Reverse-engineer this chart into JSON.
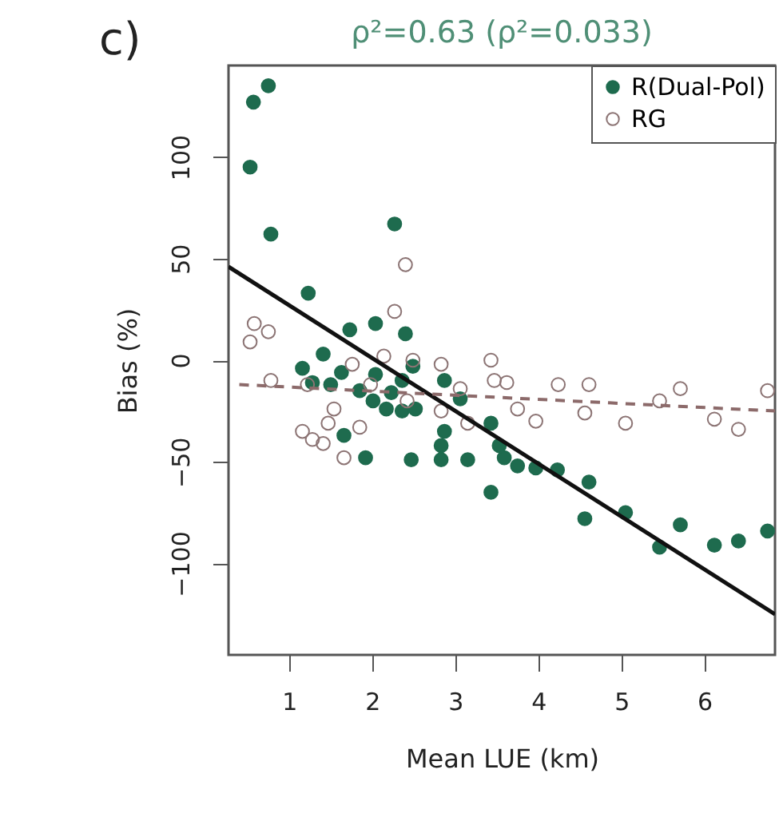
{
  "chart_data": {
    "type": "scatter",
    "title": "ρ²=0.63  (ρ²=0.033)",
    "xlabel": "Mean LUE (km)",
    "ylabel": "Bias (%)",
    "annotations": [
      "c)"
    ],
    "xlim": [
      0.27,
      6.85
    ],
    "ylim": [
      -145,
      145
    ],
    "xticks": [
      1,
      2,
      3,
      4,
      5,
      6
    ],
    "yticks": [
      -100,
      -50,
      0,
      50,
      100
    ],
    "grid": false,
    "legend": "top right",
    "series": [
      {
        "name": "R(Dual-Pol)",
        "color": "#1e6b4e",
        "marker": "circle",
        "x": [
          0.57,
          0.75,
          0.53,
          0.78,
          1.23,
          1.73,
          2.04,
          2.4,
          2.27,
          1.41,
          1.16,
          1.28,
          1.5,
          1.63,
          1.85,
          2.04,
          2.01,
          2.23,
          2.36,
          2.49,
          2.52,
          1.66,
          1.92,
          2.47,
          2.83,
          2.83,
          2.87,
          2.36,
          2.17,
          3.06,
          2.87,
          3.15,
          3.43,
          3.43,
          3.53,
          3.59,
          3.75,
          3.97,
          4.23,
          4.61,
          4.56,
          5.05,
          5.46,
          5.71,
          6.12,
          6.41,
          6.76
        ],
        "values": [
          127,
          135,
          95,
          62,
          33,
          15,
          18,
          13,
          67,
          3,
          -4,
          -11,
          -12,
          -6,
          -15,
          -7,
          -20,
          -16,
          -25,
          -3,
          -24,
          -37,
          -48,
          -49,
          -42,
          -49,
          -10,
          -10,
          -24,
          -19,
          -35,
          -49,
          -31,
          -65,
          -42,
          -48,
          -52,
          -53,
          -54,
          -60,
          -78,
          -75,
          -92,
          -81,
          -91,
          -89,
          -84
        ]
      },
      {
        "name": "RG",
        "color": "#8c7474",
        "marker": "circle",
        "x": [
          0.58,
          0.75,
          0.53,
          2.4,
          2.27,
          0.78,
          1.16,
          1.28,
          1.41,
          1.54,
          1.47,
          1.85,
          1.66,
          1.76,
          2.14,
          1.98,
          2.42,
          2.49,
          2.83,
          2.83,
          1.22,
          3.43,
          3.47,
          3.62,
          3.75,
          3.97,
          4.24,
          4.61,
          4.56,
          5.05,
          5.46,
          5.71,
          6.12,
          6.41,
          6.76,
          3.15,
          3.06
        ],
        "values": [
          18,
          14,
          9,
          47,
          24,
          -10,
          -35,
          -39,
          -41,
          -24,
          -31,
          -33,
          -48,
          -2,
          2,
          -12,
          -20,
          0,
          -2,
          -25,
          -12,
          0,
          -10,
          -11,
          -24,
          -30,
          -12,
          -12,
          -26,
          -31,
          -20,
          -14,
          -29,
          -34,
          -15,
          -31,
          -14
        ]
      },
      {
        "color": "#111111",
        "type": "line",
        "marker": "none",
        "line_style": "solid",
        "x": [
          0.27,
          6.85
        ],
        "values": [
          46,
          -125
        ]
      },
      {
        "color": "#8c6a6a",
        "type": "line",
        "marker": "none",
        "line_style": "dashed",
        "x": [
          0.4,
          6.85
        ],
        "values": [
          -12,
          -25
        ]
      }
    ]
  }
}
